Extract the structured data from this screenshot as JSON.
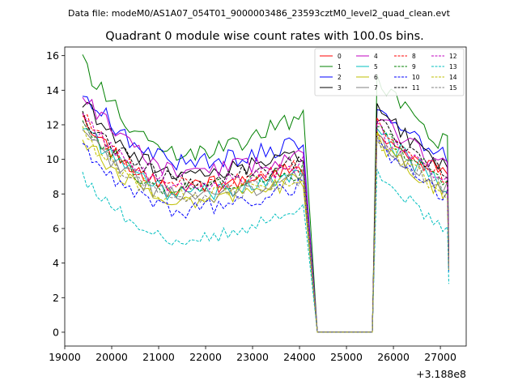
{
  "chart_data": {
    "type": "line",
    "suptitle": "Data file: modeM0/AS1A07_054T01_9000003486_23593cztM0_level2_quad_clean.evt",
    "title": "Quadrant 0 module wise count rates with 100.0s bins.",
    "xlabel": "",
    "ylabel": "",
    "x_offset_label": "+3.188e8",
    "xlim": [
      19000,
      27550
    ],
    "ylim": [
      -0.8,
      16.5
    ],
    "x_ticks": [
      19000,
      20000,
      21000,
      22000,
      23000,
      24000,
      25000,
      26000,
      27000
    ],
    "y_ticks": [
      0,
      2,
      4,
      6,
      8,
      10,
      12,
      14,
      16
    ],
    "legend_position": "top-right",
    "grid": false,
    "x_segment_1": {
      "start": 19380,
      "step": 100,
      "count": 48
    },
    "x_segment_2": {
      "start": 25650,
      "step": 100,
      "count": 16
    },
    "gap_level": 0.0,
    "series": [
      {
        "name": "0",
        "color": "#ff0000",
        "style": "solid",
        "start1": 12.3,
        "mid1": 8.4,
        "end1": 9.6,
        "start2": 11.9,
        "end2": 9.0,
        "last": 3.8,
        "noise": 0.5
      },
      {
        "name": "1",
        "color": "#008000",
        "style": "solid",
        "start1": 15.5,
        "mid1": 10.4,
        "end1": 12.6,
        "start2": 14.8,
        "end2": 10.8,
        "last": 4.3,
        "noise": 0.6
      },
      {
        "name": "2",
        "color": "#0000ff",
        "style": "solid",
        "start1": 14.2,
        "mid1": 9.8,
        "end1": 11.0,
        "start2": 13.4,
        "end2": 10.0,
        "last": 4.0,
        "noise": 0.6
      },
      {
        "name": "3",
        "color": "#000000",
        "style": "solid",
        "start1": 13.4,
        "mid1": 9.2,
        "end1": 10.4,
        "start2": 13.2,
        "end2": 9.4,
        "last": 3.9,
        "noise": 0.5
      },
      {
        "name": "4",
        "color": "#c000c0",
        "style": "solid",
        "start1": 13.9,
        "mid1": 9.3,
        "end1": 10.2,
        "start2": 12.7,
        "end2": 9.4,
        "last": 3.9,
        "noise": 0.5
      },
      {
        "name": "5",
        "color": "#00bfbf",
        "style": "solid",
        "start1": 12.0,
        "mid1": 8.0,
        "end1": 9.2,
        "start2": 11.8,
        "end2": 8.4,
        "last": 3.7,
        "noise": 0.5
      },
      {
        "name": "6",
        "color": "#bfbf00",
        "style": "solid",
        "start1": 11.3,
        "mid1": 7.6,
        "end1": 8.9,
        "start2": 11.2,
        "end2": 8.0,
        "last": 3.6,
        "noise": 0.5
      },
      {
        "name": "7",
        "color": "#808080",
        "style": "solid",
        "start1": 11.8,
        "mid1": 7.9,
        "end1": 9.0,
        "start2": 11.5,
        "end2": 8.3,
        "last": 3.6,
        "noise": 0.5
      },
      {
        "name": "8",
        "color": "#ff0000",
        "style": "dashed",
        "start1": 12.5,
        "mid1": 8.5,
        "end1": 9.6,
        "start2": 12.0,
        "end2": 8.9,
        "last": 3.8,
        "noise": 0.5
      },
      {
        "name": "9",
        "color": "#008000",
        "style": "dashed",
        "start1": 12.2,
        "mid1": 8.2,
        "end1": 9.4,
        "start2": 12.0,
        "end2": 8.7,
        "last": 3.7,
        "noise": 0.5
      },
      {
        "name": "10",
        "color": "#0000ff",
        "style": "dashed",
        "start1": 10.8,
        "mid1": 7.1,
        "end1": 8.6,
        "start2": 10.9,
        "end2": 7.8,
        "last": 3.5,
        "noise": 0.5
      },
      {
        "name": "11",
        "color": "#000000",
        "style": "dashed",
        "start1": 12.6,
        "mid1": 8.8,
        "end1": 10.0,
        "start2": 12.3,
        "end2": 9.2,
        "last": 3.8,
        "noise": 0.5
      },
      {
        "name": "12",
        "color": "#c000c0",
        "style": "dashed",
        "start1": 12.4,
        "mid1": 8.5,
        "end1": 9.7,
        "start2": 11.8,
        "end2": 8.9,
        "last": 3.7,
        "noise": 0.5
      },
      {
        "name": "13",
        "color": "#00bfbf",
        "style": "dashed",
        "start1": 9.0,
        "mid1": 5.3,
        "end1": 7.3,
        "start2": 9.6,
        "end2": 5.8,
        "last": 2.8,
        "noise": 0.4
      },
      {
        "name": "14",
        "color": "#bfbf00",
        "style": "dashed",
        "start1": 11.5,
        "mid1": 7.8,
        "end1": 9.0,
        "start2": 11.3,
        "end2": 8.0,
        "last": 3.6,
        "noise": 0.5
      },
      {
        "name": "15",
        "color": "#808080",
        "style": "dashed",
        "start1": 11.7,
        "mid1": 7.7,
        "end1": 9.0,
        "start2": 11.4,
        "end2": 8.1,
        "last": 3.6,
        "noise": 0.5
      }
    ]
  }
}
